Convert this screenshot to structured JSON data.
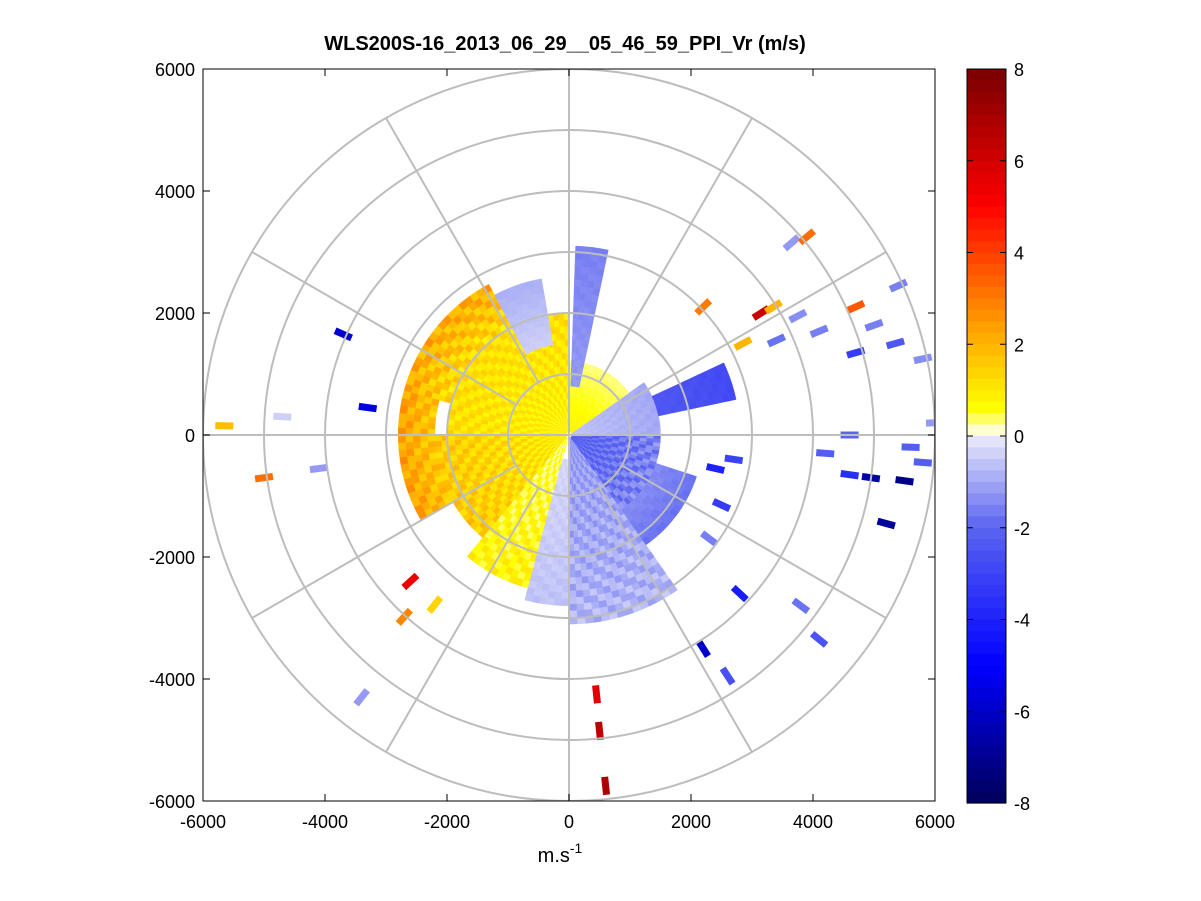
{
  "chart_data": {
    "type": "polar-ppi",
    "title": "WLS200S-16_2013_06_29__05_46_59_PPI_Vr (m/s)",
    "xlabel": "m.s",
    "xlabel_superscript": "-1",
    "ylabel": "",
    "xlim": [
      -6000,
      6000
    ],
    "ylim": [
      -6000,
      6000
    ],
    "x_ticks": [
      "-6000",
      "-4000",
      "-2000",
      "0",
      "2000",
      "4000",
      "6000"
    ],
    "y_ticks": [
      "6000",
      "4000",
      "2000",
      "0",
      "-2000",
      "-4000",
      "-6000"
    ],
    "range_rings_m": [
      1000,
      2000,
      3000,
      4000,
      5000,
      6000
    ],
    "spoke_angles_deg": [
      0,
      30,
      60,
      90,
      120,
      150,
      180,
      210,
      240,
      270,
      300,
      330
    ],
    "colorbar": {
      "min": -8,
      "max": 8,
      "ticks": [
        "8",
        "6",
        "4",
        "2",
        "0",
        "-2",
        "-4",
        "-6",
        "-8"
      ],
      "colormap_stops": [
        {
          "v": -8,
          "c": "#00005a"
        },
        {
          "v": -5,
          "c": "#0000ff"
        },
        {
          "v": -2,
          "c": "#5a64f0"
        },
        {
          "v": -0.05,
          "c": "#e8e8fa"
        },
        {
          "v": 0.05,
          "c": "#fffff0"
        },
        {
          "v": 0.6,
          "c": "#ffff00"
        },
        {
          "v": 2.5,
          "c": "#ff9900"
        },
        {
          "v": 5,
          "c": "#ff0000"
        },
        {
          "v": 8,
          "c": "#780000"
        }
      ]
    },
    "sectors": [
      {
        "az_from": 270,
        "az_to": 360,
        "r_from": 50,
        "r_to": 2000,
        "v_near": 0.8,
        "v_far": 1.2
      },
      {
        "az_from": 285,
        "az_to": 332,
        "r_from": 2000,
        "r_to": 2800,
        "v_near": 1.2,
        "v_far": 2.2
      },
      {
        "az_from": 332,
        "az_to": 350,
        "r_from": 1500,
        "r_to": 2600,
        "v_near": -0.4,
        "v_far": -0.9
      },
      {
        "az_from": 220,
        "az_to": 270,
        "r_from": 50,
        "r_to": 2200,
        "v_near": 0.9,
        "v_far": 1.6
      },
      {
        "az_from": 240,
        "az_to": 285,
        "r_from": 2200,
        "r_to": 2800,
        "v_near": 1.6,
        "v_far": 2.4
      },
      {
        "az_from": 195,
        "az_to": 220,
        "r_from": 50,
        "r_to": 2600,
        "v_near": 0.4,
        "v_far": 0.8
      },
      {
        "az_from": 180,
        "az_to": 195,
        "r_from": 400,
        "r_to": 2800,
        "v_near": -0.3,
        "v_far": -0.6
      },
      {
        "az_from": 145,
        "az_to": 180,
        "r_from": 50,
        "r_to": 3100,
        "v_near": -1.2,
        "v_far": -0.8
      },
      {
        "az_from": 90,
        "az_to": 145,
        "r_from": 50,
        "r_to": 1500,
        "v_near": -2.2,
        "v_far": -1.5
      },
      {
        "az_from": 55,
        "az_to": 90,
        "r_from": 50,
        "r_to": 1500,
        "v_near": -0.6,
        "v_far": -1.0
      },
      {
        "az_from": 0,
        "az_to": 55,
        "r_from": 50,
        "r_to": 1200,
        "v_near": 0.8,
        "v_far": 0.3
      },
      {
        "az_from": 2,
        "az_to": 12,
        "r_from": 800,
        "r_to": 3100,
        "v_near": -1.2,
        "v_far": -1.6
      },
      {
        "az_from": 65,
        "az_to": 78,
        "r_from": 1500,
        "r_to": 2800,
        "v_near": -2.4,
        "v_far": -2.8
      },
      {
        "az_from": 108,
        "az_to": 145,
        "r_from": 1500,
        "r_to": 2200,
        "v_near": -1.4,
        "v_far": -1.8
      }
    ],
    "scatter_gates": [
      {
        "x": -5650,
        "y": 150,
        "v": 1.8
      },
      {
        "x": -5000,
        "y": -700,
        "v": 3.2
      },
      {
        "x": -4700,
        "y": 300,
        "v": -0.4
      },
      {
        "x": -4100,
        "y": -550,
        "v": -1.2
      },
      {
        "x": -3700,
        "y": 1650,
        "v": -5.8
      },
      {
        "x": -3300,
        "y": 450,
        "v": -5.5
      },
      {
        "x": -2600,
        "y": -2400,
        "v": 5.5
      },
      {
        "x": -2700,
        "y": -2980,
        "v": 2.8
      },
      {
        "x": -2200,
        "y": -2780,
        "v": 1.4
      },
      {
        "x": -3400,
        "y": -4300,
        "v": -1.2
      },
      {
        "x": 450,
        "y": -4250,
        "v": 5.6
      },
      {
        "x": 500,
        "y": -4850,
        "v": 6.5
      },
      {
        "x": 600,
        "y": -5750,
        "v": 6.8
      },
      {
        "x": 2200,
        "y": -3500,
        "v": -6.0
      },
      {
        "x": 2600,
        "y": -3950,
        "v": -2.6
      },
      {
        "x": 2800,
        "y": -2600,
        "v": -4.2
      },
      {
        "x": 3800,
        "y": -2800,
        "v": -1.8
      },
      {
        "x": 4100,
        "y": -3350,
        "v": -2.5
      },
      {
        "x": 2300,
        "y": -1700,
        "v": -1.6
      },
      {
        "x": 2500,
        "y": -1150,
        "v": -3.2
      },
      {
        "x": 2400,
        "y": -550,
        "v": -4.0
      },
      {
        "x": 2700,
        "y": -400,
        "v": -3.0
      },
      {
        "x": 4200,
        "y": -300,
        "v": -2.2
      },
      {
        "x": 4600,
        "y": -650,
        "v": -3.6
      },
      {
        "x": 4950,
        "y": -700,
        "v": -6.6
      },
      {
        "x": 5200,
        "y": -1450,
        "v": -6.8
      },
      {
        "x": 5500,
        "y": -750,
        "v": -7.2
      },
      {
        "x": 5600,
        "y": -200,
        "v": -2.2
      },
      {
        "x": 4600,
        "y": 0,
        "v": -2.0
      },
      {
        "x": 2200,
        "y": 2100,
        "v": 3.0
      },
      {
        "x": 2850,
        "y": 1500,
        "v": 2.0
      },
      {
        "x": 3150,
        "y": 2000,
        "v": 6.2
      },
      {
        "x": 3350,
        "y": 2100,
        "v": 2.0
      },
      {
        "x": 3400,
        "y": 1550,
        "v": -1.8
      },
      {
        "x": 3750,
        "y": 1950,
        "v": -1.4
      },
      {
        "x": 3650,
        "y": 3150,
        "v": -1.2
      },
      {
        "x": 3900,
        "y": 3250,
        "v": 3.2
      },
      {
        "x": 4700,
        "y": 2100,
        "v": 3.6
      },
      {
        "x": 4700,
        "y": 1350,
        "v": -3.2
      },
      {
        "x": 5000,
        "y": 1800,
        "v": -1.6
      },
      {
        "x": 5350,
        "y": 1500,
        "v": -2.4
      },
      {
        "x": 5400,
        "y": 2450,
        "v": -1.6
      },
      {
        "x": 5800,
        "y": 1250,
        "v": -1.4
      },
      {
        "x": 6000,
        "y": 200,
        "v": -1.2
      },
      {
        "x": 5800,
        "y": -450,
        "v": -2.2
      },
      {
        "x": 4100,
        "y": 1700,
        "v": -1.6
      }
    ]
  }
}
